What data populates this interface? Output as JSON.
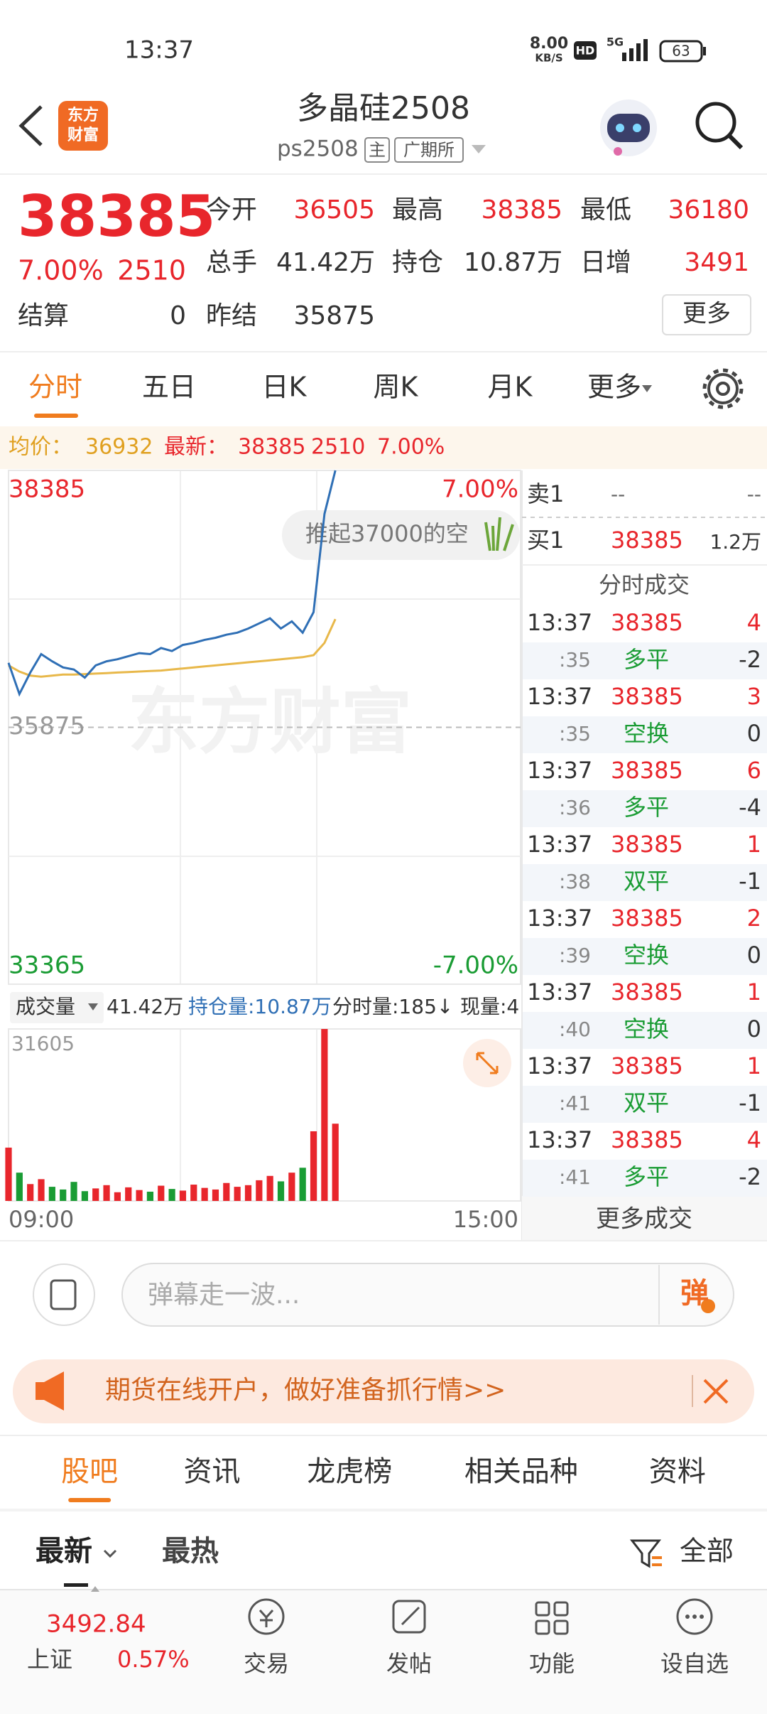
{
  "status": {
    "time": "13:37",
    "speed": "8.00",
    "speed_unit": "KB/S",
    "hd": "HD",
    "net": "5G",
    "battery": "63"
  },
  "header": {
    "logo": [
      "东方",
      "财富"
    ],
    "title": "多晶硅2508",
    "code": "ps2508",
    "tags": [
      "主",
      "广期所"
    ]
  },
  "quote": {
    "price": "38385",
    "change_pct": "7.00%",
    "change": "2510",
    "more": "更多",
    "fields": [
      {
        "label": "今开",
        "value": "36505",
        "color": "#e8262c"
      },
      {
        "label": "最高",
        "value": "38385",
        "color": "#e8262c"
      },
      {
        "label": "最低",
        "value": "36180",
        "color": "#e8262c"
      },
      {
        "label": "总手",
        "value": "41.42万",
        "color": "#333333"
      },
      {
        "label": "持仓",
        "value": "10.87万",
        "color": "#333333"
      },
      {
        "label": "日增",
        "value": "3491",
        "color": "#e8262c"
      },
      {
        "label": "结算",
        "value": "0",
        "color": "#333333"
      },
      {
        "label": "昨结",
        "value": "35875",
        "color": "#333333"
      }
    ]
  },
  "tabs": {
    "items": [
      "分时",
      "五日",
      "日K",
      "周K",
      "月K",
      "更多"
    ],
    "active": 0
  },
  "info": {
    "avg_label": "均价：",
    "avg": "36932",
    "latest_label": "最新：",
    "latest": "38385",
    "change": "2510",
    "change_pct": "7.00%"
  },
  "chart_data": [
    {
      "type": "line",
      "grid": true,
      "ylim": [
        33365,
        38385
      ],
      "yticks": [
        33365,
        35875,
        38385
      ],
      "y2lim": [
        -7,
        7
      ],
      "y2ticks": [
        {
          "value": -7,
          "label": "-7.00%"
        },
        {
          "value": 7,
          "label": "7.00%"
        }
      ],
      "xlabels": [
        "09:00",
        "15:00"
      ],
      "annotation": "推起37000的空",
      "watermark": "东方财富",
      "series": [
        {
          "color": "#2f6fb5",
          "values": [
            36505,
            36200,
            36410,
            36590,
            36520,
            36460,
            36440,
            36360,
            36480,
            36520,
            36540,
            36570,
            36600,
            36590,
            36650,
            36620,
            36680,
            36700,
            36730,
            36750,
            36780,
            36800,
            36840,
            36890,
            36940,
            36840,
            36910,
            36800,
            37000,
            37960,
            38385,
            null,
            null,
            null,
            null,
            null,
            null,
            null,
            null,
            null,
            null,
            null,
            null,
            null,
            null,
            null,
            null,
            null
          ]
        },
        {
          "color": "#e8b84a",
          "values": [
            36480,
            36420,
            36380,
            36370,
            36380,
            36390,
            36390,
            36395,
            36400,
            36405,
            36410,
            36415,
            36420,
            36425,
            36430,
            36440,
            36450,
            36460,
            36470,
            36480,
            36490,
            36500,
            36510,
            36520,
            36530,
            36540,
            36550,
            36560,
            36580,
            36700,
            36932,
            null,
            null,
            null,
            null,
            null,
            null,
            null,
            null,
            null,
            null,
            null,
            null,
            null,
            null,
            null,
            null,
            null
          ]
        }
      ]
    },
    {
      "type": "bar",
      "ylim": [
        0,
        31605
      ],
      "yticks": [
        31605
      ],
      "up_color": "#e8262c",
      "down_color": "#1a9c34",
      "values": [
        9800,
        5200,
        3100,
        4000,
        2600,
        2100,
        3500,
        1800,
        2300,
        2900,
        1600,
        2500,
        2000,
        1700,
        2800,
        2200,
        1900,
        3000,
        2400,
        2100,
        3300,
        2600,
        2900,
        3800,
        4600,
        3600,
        5200,
        6100,
        12800,
        31605,
        14200,
        null,
        null,
        null,
        null,
        null,
        null,
        null,
        null,
        null,
        null,
        null,
        null,
        null,
        null,
        null,
        null,
        null
      ]
    }
  ],
  "volume_bar": {
    "label": "成交量",
    "total": "41.42万",
    "oi": "持仓量:10.87万",
    "tick": "分时量:185↓",
    "current": "现量:4"
  },
  "book": {
    "ask": {
      "label": "卖1",
      "price": "--",
      "vol": "--"
    },
    "bid": {
      "label": "买1",
      "price": "38385",
      "vol": "1.2万"
    },
    "trades_title": "分时成交",
    "trades": [
      {
        "time": "13:37",
        "price": "38385",
        "vol": "4",
        "sec": ":35",
        "kind": "多平",
        "oi": "-2"
      },
      {
        "time": "13:37",
        "price": "38385",
        "vol": "3",
        "sec": ":35",
        "kind": "空换",
        "oi": "0"
      },
      {
        "time": "13:37",
        "price": "38385",
        "vol": "6",
        "sec": ":36",
        "kind": "多平",
        "oi": "-4"
      },
      {
        "time": "13:37",
        "price": "38385",
        "vol": "1",
        "sec": ":38",
        "kind": "双平",
        "oi": "-1"
      },
      {
        "time": "13:37",
        "price": "38385",
        "vol": "2",
        "sec": ":39",
        "kind": "空换",
        "oi": "0"
      },
      {
        "time": "13:37",
        "price": "38385",
        "vol": "1",
        "sec": ":40",
        "kind": "空换",
        "oi": "0"
      },
      {
        "time": "13:37",
        "price": "38385",
        "vol": "1",
        "sec": ":41",
        "kind": "双平",
        "oi": "-1"
      },
      {
        "time": "13:37",
        "price": "38385",
        "vol": "4",
        "sec": ":41",
        "kind": "多平",
        "oi": "-2"
      }
    ],
    "more": "更多成交"
  },
  "comment": {
    "placeholder": "弹幕走一波...",
    "button": "弹"
  },
  "banner": "期货在线开户，做好准备抓行情>>",
  "section_tabs": {
    "items": [
      "股吧",
      "资讯",
      "龙虎榜",
      "相关品种",
      "资料"
    ],
    "active": 0
  },
  "sort": {
    "items": [
      "最新",
      "最热"
    ],
    "filter": "全部"
  },
  "footer": {
    "index_value": "3492.84",
    "index_name": "上证",
    "index_change": "0.57%",
    "nav": [
      "交易",
      "发帖",
      "功能",
      "设自选"
    ]
  }
}
